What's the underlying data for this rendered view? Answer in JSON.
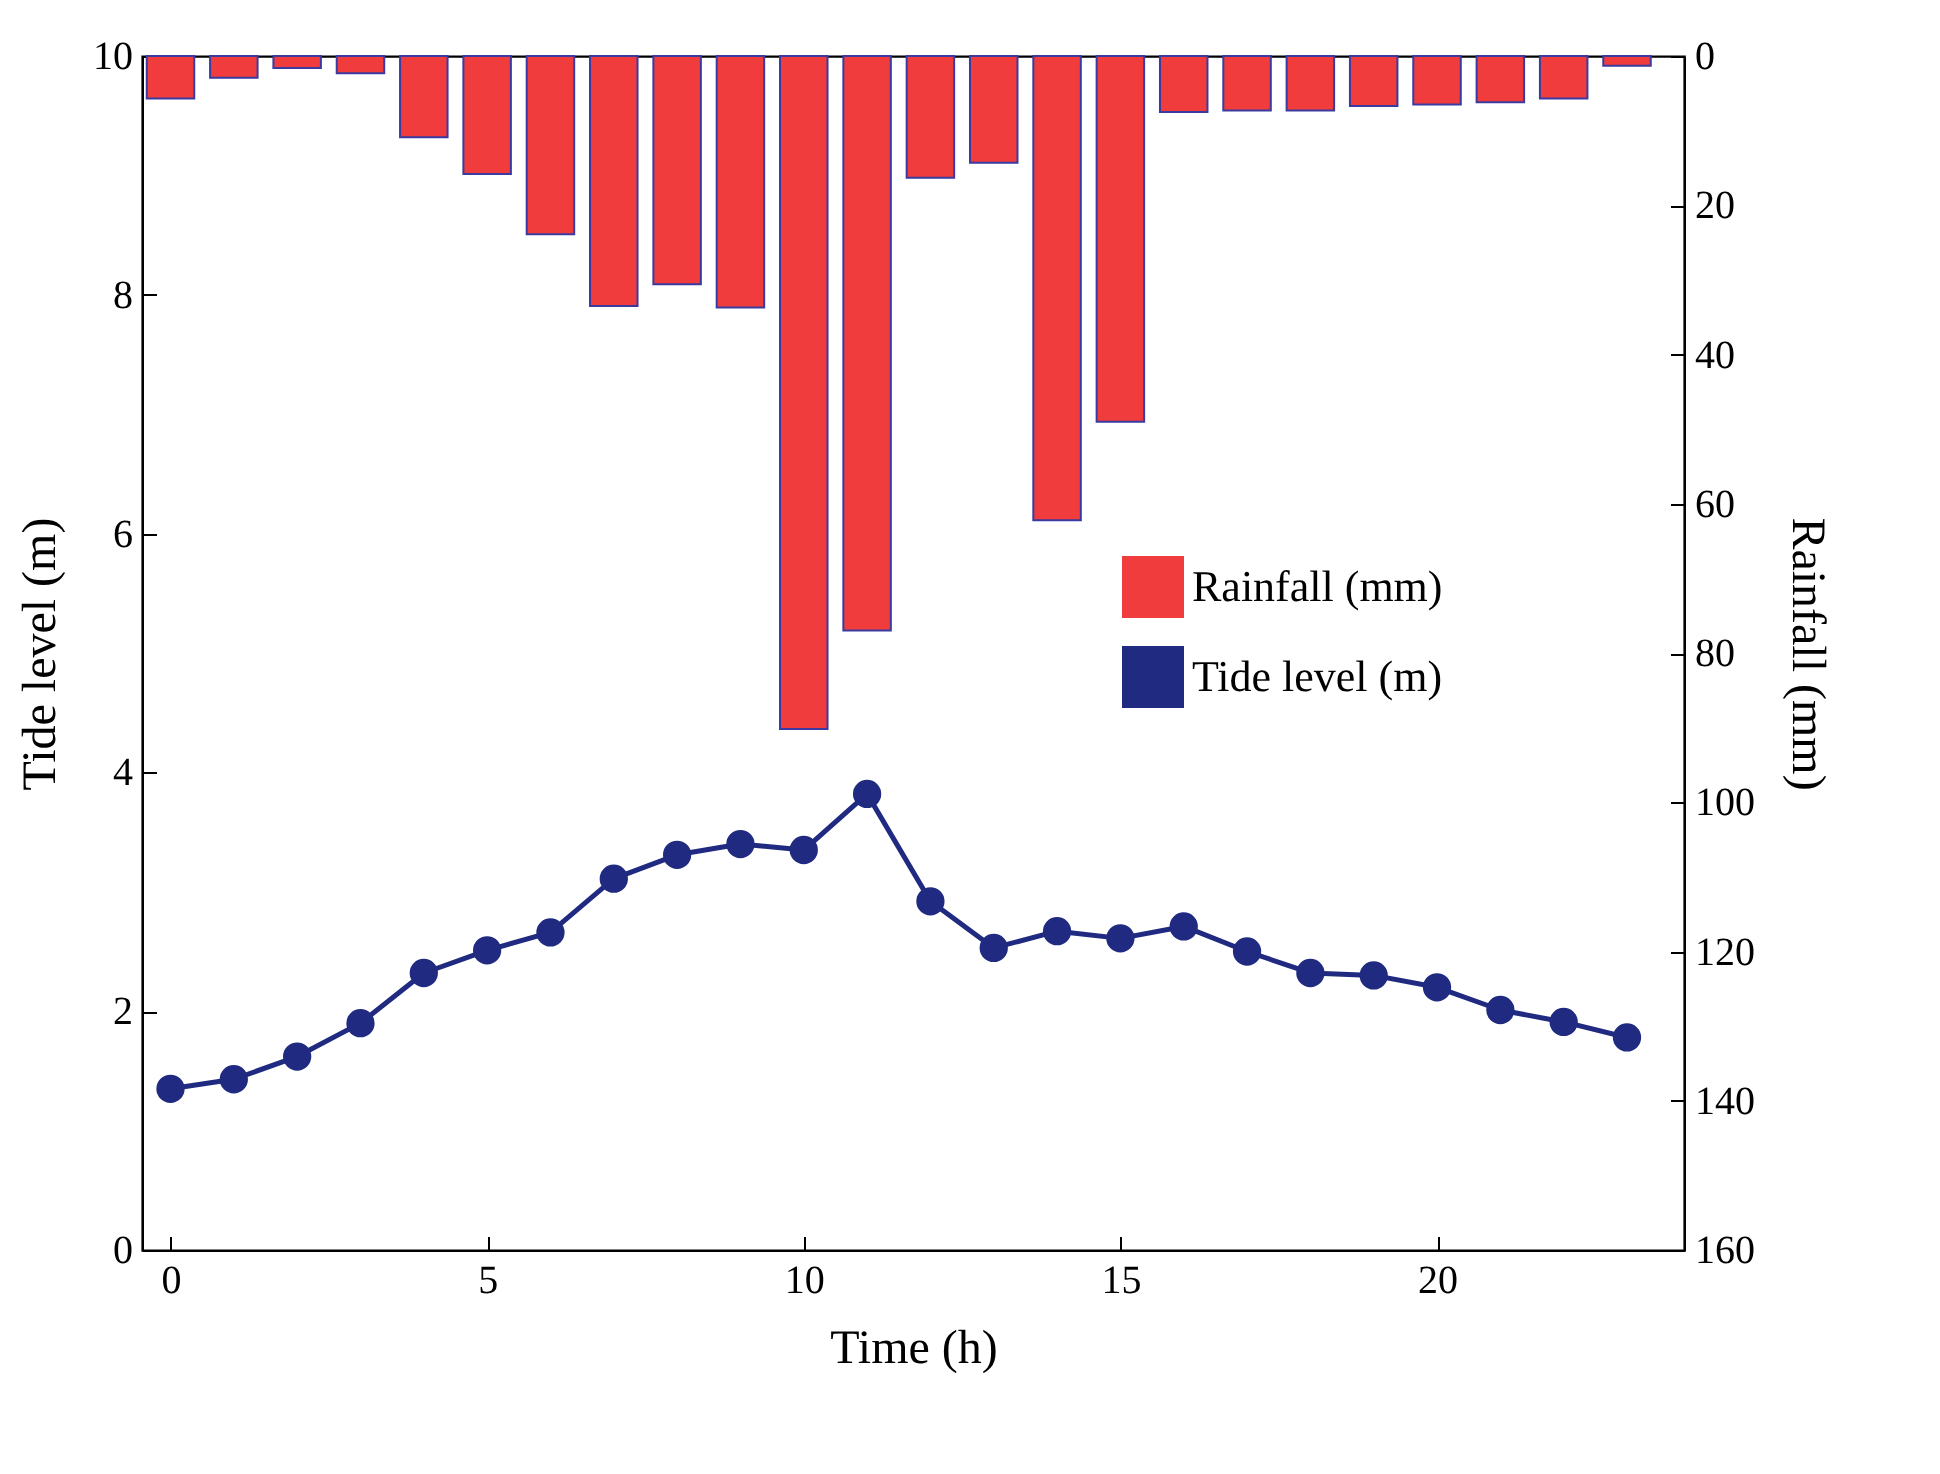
{
  "chart_data": {
    "type": "bar",
    "xlabel": "Time (h)",
    "ylabel": "Tide level (m)",
    "y2label": "Rainfall (mm)",
    "x": [
      0,
      1,
      2,
      3,
      4,
      5,
      6,
      7,
      8,
      9,
      10,
      11,
      12,
      13,
      14,
      15,
      16,
      17,
      18,
      19,
      20,
      21,
      22,
      23
    ],
    "xlim": [
      -0.45,
      23.9
    ],
    "xticks": [
      0,
      5,
      10,
      15,
      20
    ],
    "ylim": [
      0,
      10
    ],
    "yticks": [
      0,
      2,
      4,
      6,
      8,
      10
    ],
    "y2lim": [
      160,
      0
    ],
    "y2ticks": [
      0,
      20,
      40,
      60,
      80,
      100,
      120,
      140,
      160
    ],
    "series": [
      {
        "name": "Rainfall (mm)",
        "axis": "y2",
        "color": "#f03c3c",
        "values": [
          5.7,
          2.9,
          1.6,
          2.3,
          10.9,
          15.8,
          23.9,
          33.5,
          30.6,
          33.7,
          90.2,
          77.0,
          16.3,
          14.3,
          62.2,
          49.0,
          7.5,
          7.3,
          7.3,
          6.7,
          6.5,
          6.2,
          5.7,
          1.3
        ]
      },
      {
        "name": "Tide level (m)",
        "type": "line",
        "color": "#1f2a80",
        "values": [
          1.35,
          1.43,
          1.62,
          1.9,
          2.32,
          2.51,
          2.66,
          3.11,
          3.31,
          3.4,
          3.35,
          3.82,
          2.92,
          2.53,
          2.67,
          2.61,
          2.71,
          2.5,
          2.32,
          2.3,
          2.2,
          2.01,
          1.91,
          1.78
        ]
      }
    ],
    "marker": "circle",
    "line_style": "solid",
    "grid": false,
    "legend": "right"
  }
}
